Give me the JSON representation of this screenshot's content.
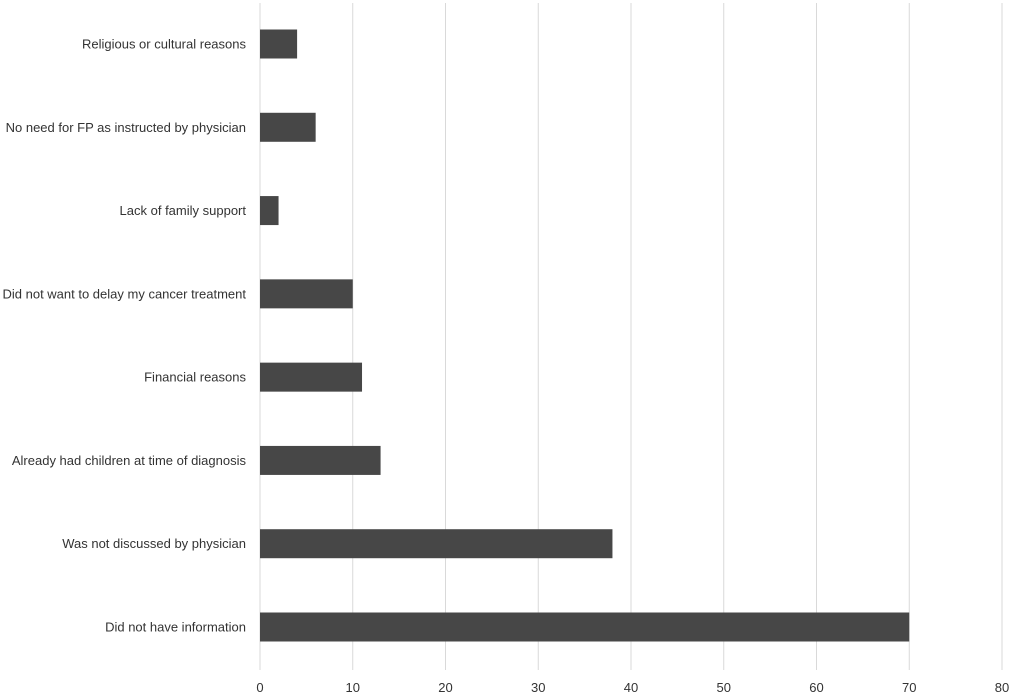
{
  "chart_data": {
    "type": "bar",
    "orientation": "horizontal",
    "title": "",
    "xlabel": "",
    "ylabel": "",
    "categories": [
      "Religious or cultural reasons",
      "No need for FP as instructed by physician",
      "Lack of family support",
      "Did not want to delay my cancer treatment",
      "Financial reasons",
      "Already had children at time of diagnosis",
      "Was not discussed by physician",
      "Did not have information"
    ],
    "values": [
      4,
      6,
      2,
      10,
      11,
      13,
      38,
      70
    ],
    "xlim": [
      0,
      80
    ],
    "xticks": [
      "0",
      "10",
      "20",
      "30",
      "40",
      "50",
      "60",
      "70",
      "80"
    ],
    "grid": "vertical",
    "legend": "none",
    "bar_color": "#474747",
    "grid_color": "#d9d9d9"
  }
}
